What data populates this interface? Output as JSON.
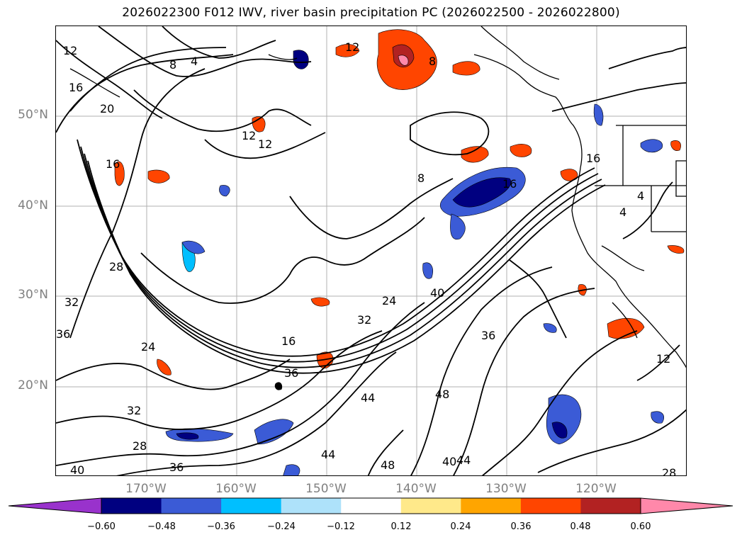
{
  "title": "2026022300 F012 IWV, river basin precipitation PC (2026022500 - 2026022800)",
  "map": {
    "lat_labels": [
      "50°N",
      "40°N",
      "30°N",
      "20°N"
    ],
    "lon_labels": [
      "170°W",
      "160°W",
      "150°W",
      "140°W",
      "130°W",
      "120°W"
    ],
    "contour_labels": [
      "12",
      "16",
      "20",
      "8",
      "4",
      "12",
      "12",
      "8",
      "16",
      "8",
      "28",
      "32",
      "36",
      "24",
      "16",
      "32",
      "24",
      "40",
      "36",
      "44",
      "48",
      "44",
      "40",
      "44",
      "48",
      "12",
      "16",
      "4",
      "4",
      "36",
      "28",
      "32",
      "40",
      "36",
      "28",
      "12",
      "16"
    ]
  },
  "colorbar": {
    "tick_labels": [
      "−0.60",
      "−0.48",
      "−0.36",
      "−0.24",
      "−0.12",
      "0.12",
      "0.24",
      "0.36",
      "0.48",
      "0.60"
    ],
    "colors": [
      "#9932cc",
      "#000080",
      "#3b5bd6",
      "#00bfff",
      "#aee2fa",
      "#ffffff",
      "#ffe98a",
      "#ffa500",
      "#ff4500",
      "#b22222",
      "#ff88aa"
    ]
  }
}
